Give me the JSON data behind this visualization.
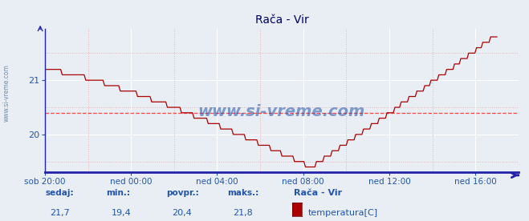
{
  "title": "Rača - Vir",
  "bg_color": "#e8eef4",
  "plot_bg_color": "#e8eef4",
  "line_color": "#aa0000",
  "grid_color_major": "#ffffff",
  "grid_color_minor": "#f0b0b0",
  "axis_color": "#2222aa",
  "label_color": "#2255aa",
  "avg_line_color": "#ff4444",
  "x_tick_labels": [
    "sob 20:00",
    "ned 00:00",
    "ned 04:00",
    "ned 08:00",
    "ned 12:00",
    "ned 16:00"
  ],
  "x_tick_positions": [
    0,
    48,
    96,
    144,
    192,
    240
  ],
  "xlim": [
    0,
    264
  ],
  "ylim": [
    19.3,
    21.95
  ],
  "yticks": [
    20,
    21
  ],
  "avg_value": 20.4,
  "min_value": 19.4,
  "max_value": 21.8,
  "current_value": 21.7,
  "footer_labels": [
    "sedaj:",
    "min.:",
    "povpr.:",
    "maks.:"
  ],
  "footer_values": [
    "21,7",
    "19,4",
    "20,4",
    "21,8"
  ],
  "legend_station": "Rača - Vir",
  "legend_param": "temperatura[C]",
  "watermark": "www.si-vreme.com",
  "total_points": 289
}
